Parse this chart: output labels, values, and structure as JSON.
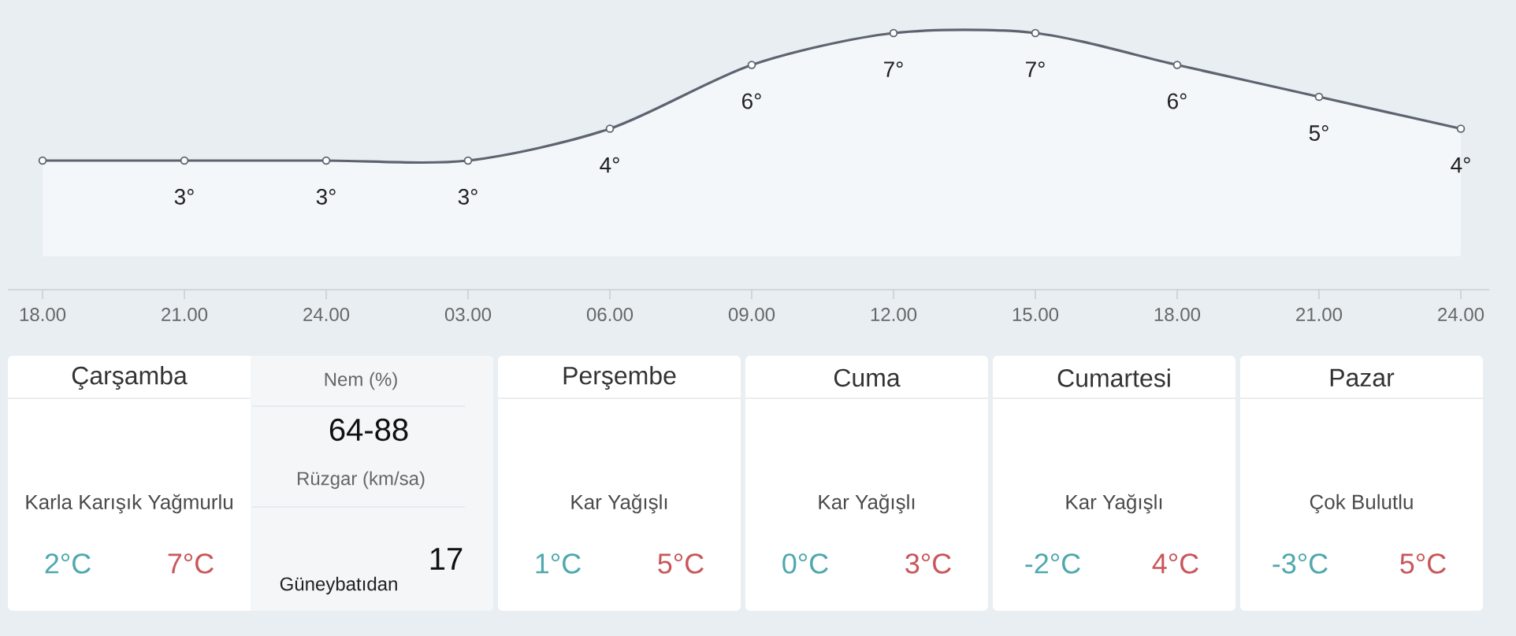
{
  "chart_data": [
    {
      "type": "area",
      "categories": [
        "18.00",
        "21.00",
        "24.00",
        "03.00",
        "06.00",
        "09.00",
        "12.00",
        "15.00",
        "18.00",
        "21.00",
        "24.00"
      ],
      "values": [
        3,
        3,
        3,
        3,
        4,
        6,
        7,
        7,
        6,
        5,
        4
      ],
      "value_labels": [
        null,
        "3°",
        "3°",
        "3°",
        "4°",
        "6°",
        "7°",
        "7°",
        "6°",
        "5°",
        "4°"
      ],
      "color": "#5d6470",
      "marker": "circle",
      "tick_labels": "x"
    },
    {
      "type": "other",
      "title": "Çarşamba",
      "annotations": [
        "Karla Karışık Yağmurlu",
        "2°C",
        "7°C",
        "Nem (%)",
        "64-88",
        "Rüzgar (km/sa)",
        "17",
        "Güneybatıdan"
      ]
    },
    {
      "type": "other",
      "title": "Perşembe",
      "annotations": [
        "Kar Yağışlı",
        "1°C",
        "5°C"
      ]
    },
    {
      "type": "other",
      "title": "Cuma",
      "annotations": [
        "Kar Yağışlı",
        "0°C",
        "3°C"
      ]
    },
    {
      "type": "other",
      "title": "Cumartesi",
      "annotations": [
        "Kar Yağışlı",
        "-2°C",
        "4°C"
      ]
    },
    {
      "type": "other",
      "title": "Pazar",
      "annotations": [
        "Çok Bulutlu",
        "-3°C",
        "5°C"
      ]
    }
  ]
}
